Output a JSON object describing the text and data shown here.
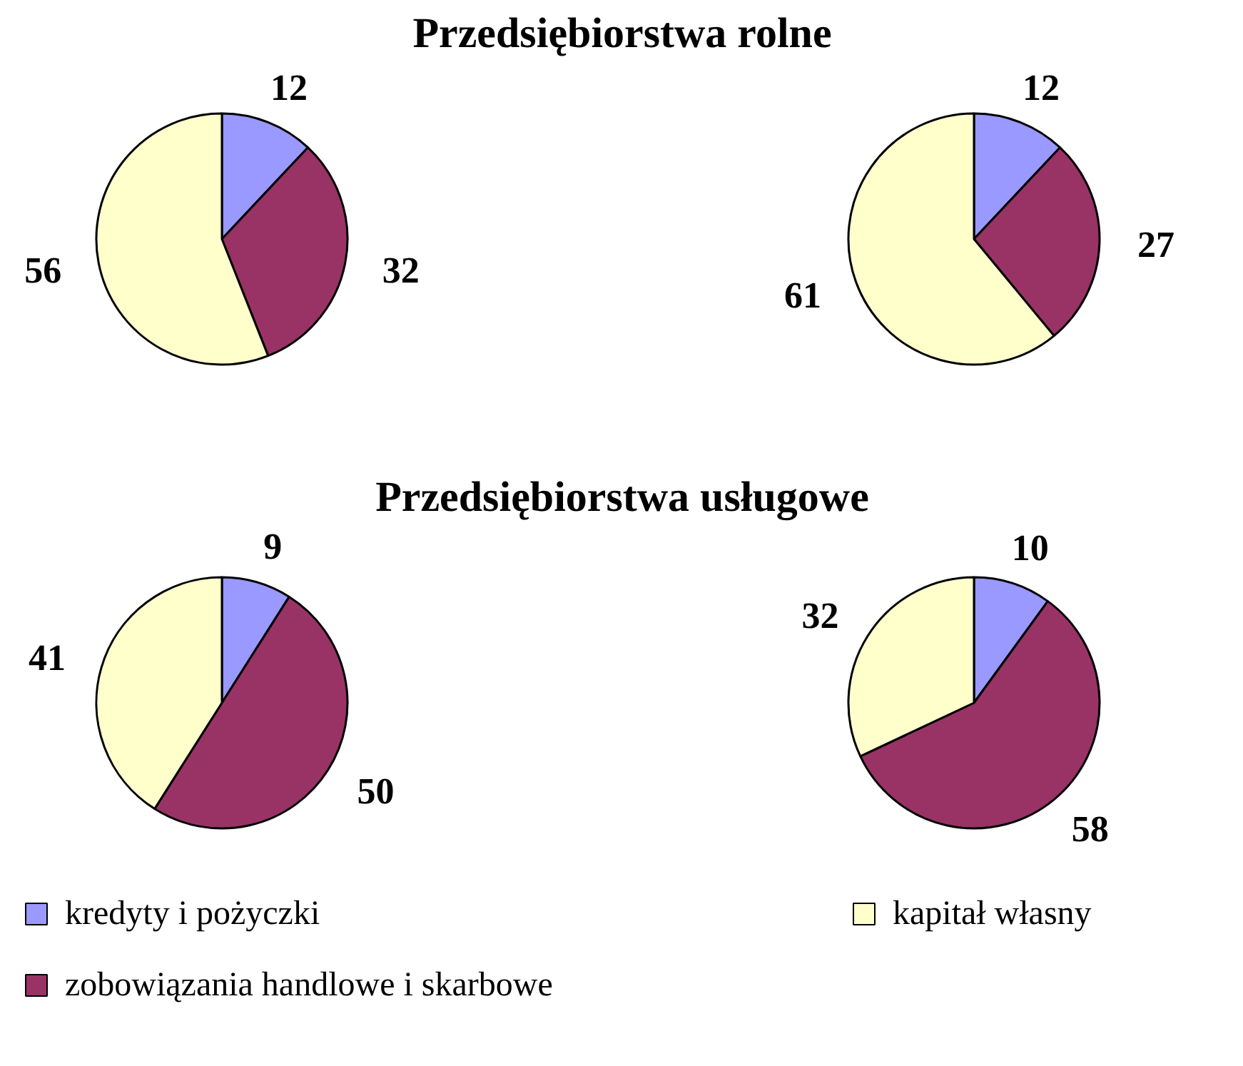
{
  "chart_data": [
    {
      "type": "pie",
      "title": "Przedsiębiorstwa rolne",
      "categories": [
        "kredyty i pożyczki",
        "zobowiązania handlowe i skarbowe",
        "kapitał własny"
      ],
      "values": [
        12,
        32,
        56
      ],
      "colors": [
        "#9999ff",
        "#993366",
        "#ffffcc"
      ],
      "data_labels": true,
      "legend": "bottom"
    },
    {
      "type": "pie",
      "values": [
        12,
        27,
        61
      ],
      "colors": [
        "#9999ff",
        "#993366",
        "#ffffcc"
      ],
      "data_labels": true
    },
    {
      "type": "pie",
      "title": "Przedsiębiorstwa usługowe",
      "values": [
        9,
        50,
        41
      ],
      "colors": [
        "#9999ff",
        "#993366",
        "#ffffcc"
      ],
      "data_labels": true
    },
    {
      "type": "pie",
      "values": [
        10,
        58,
        32
      ],
      "colors": [
        "#9999ff",
        "#993366",
        "#ffffcc"
      ],
      "data_labels": true
    }
  ]
}
